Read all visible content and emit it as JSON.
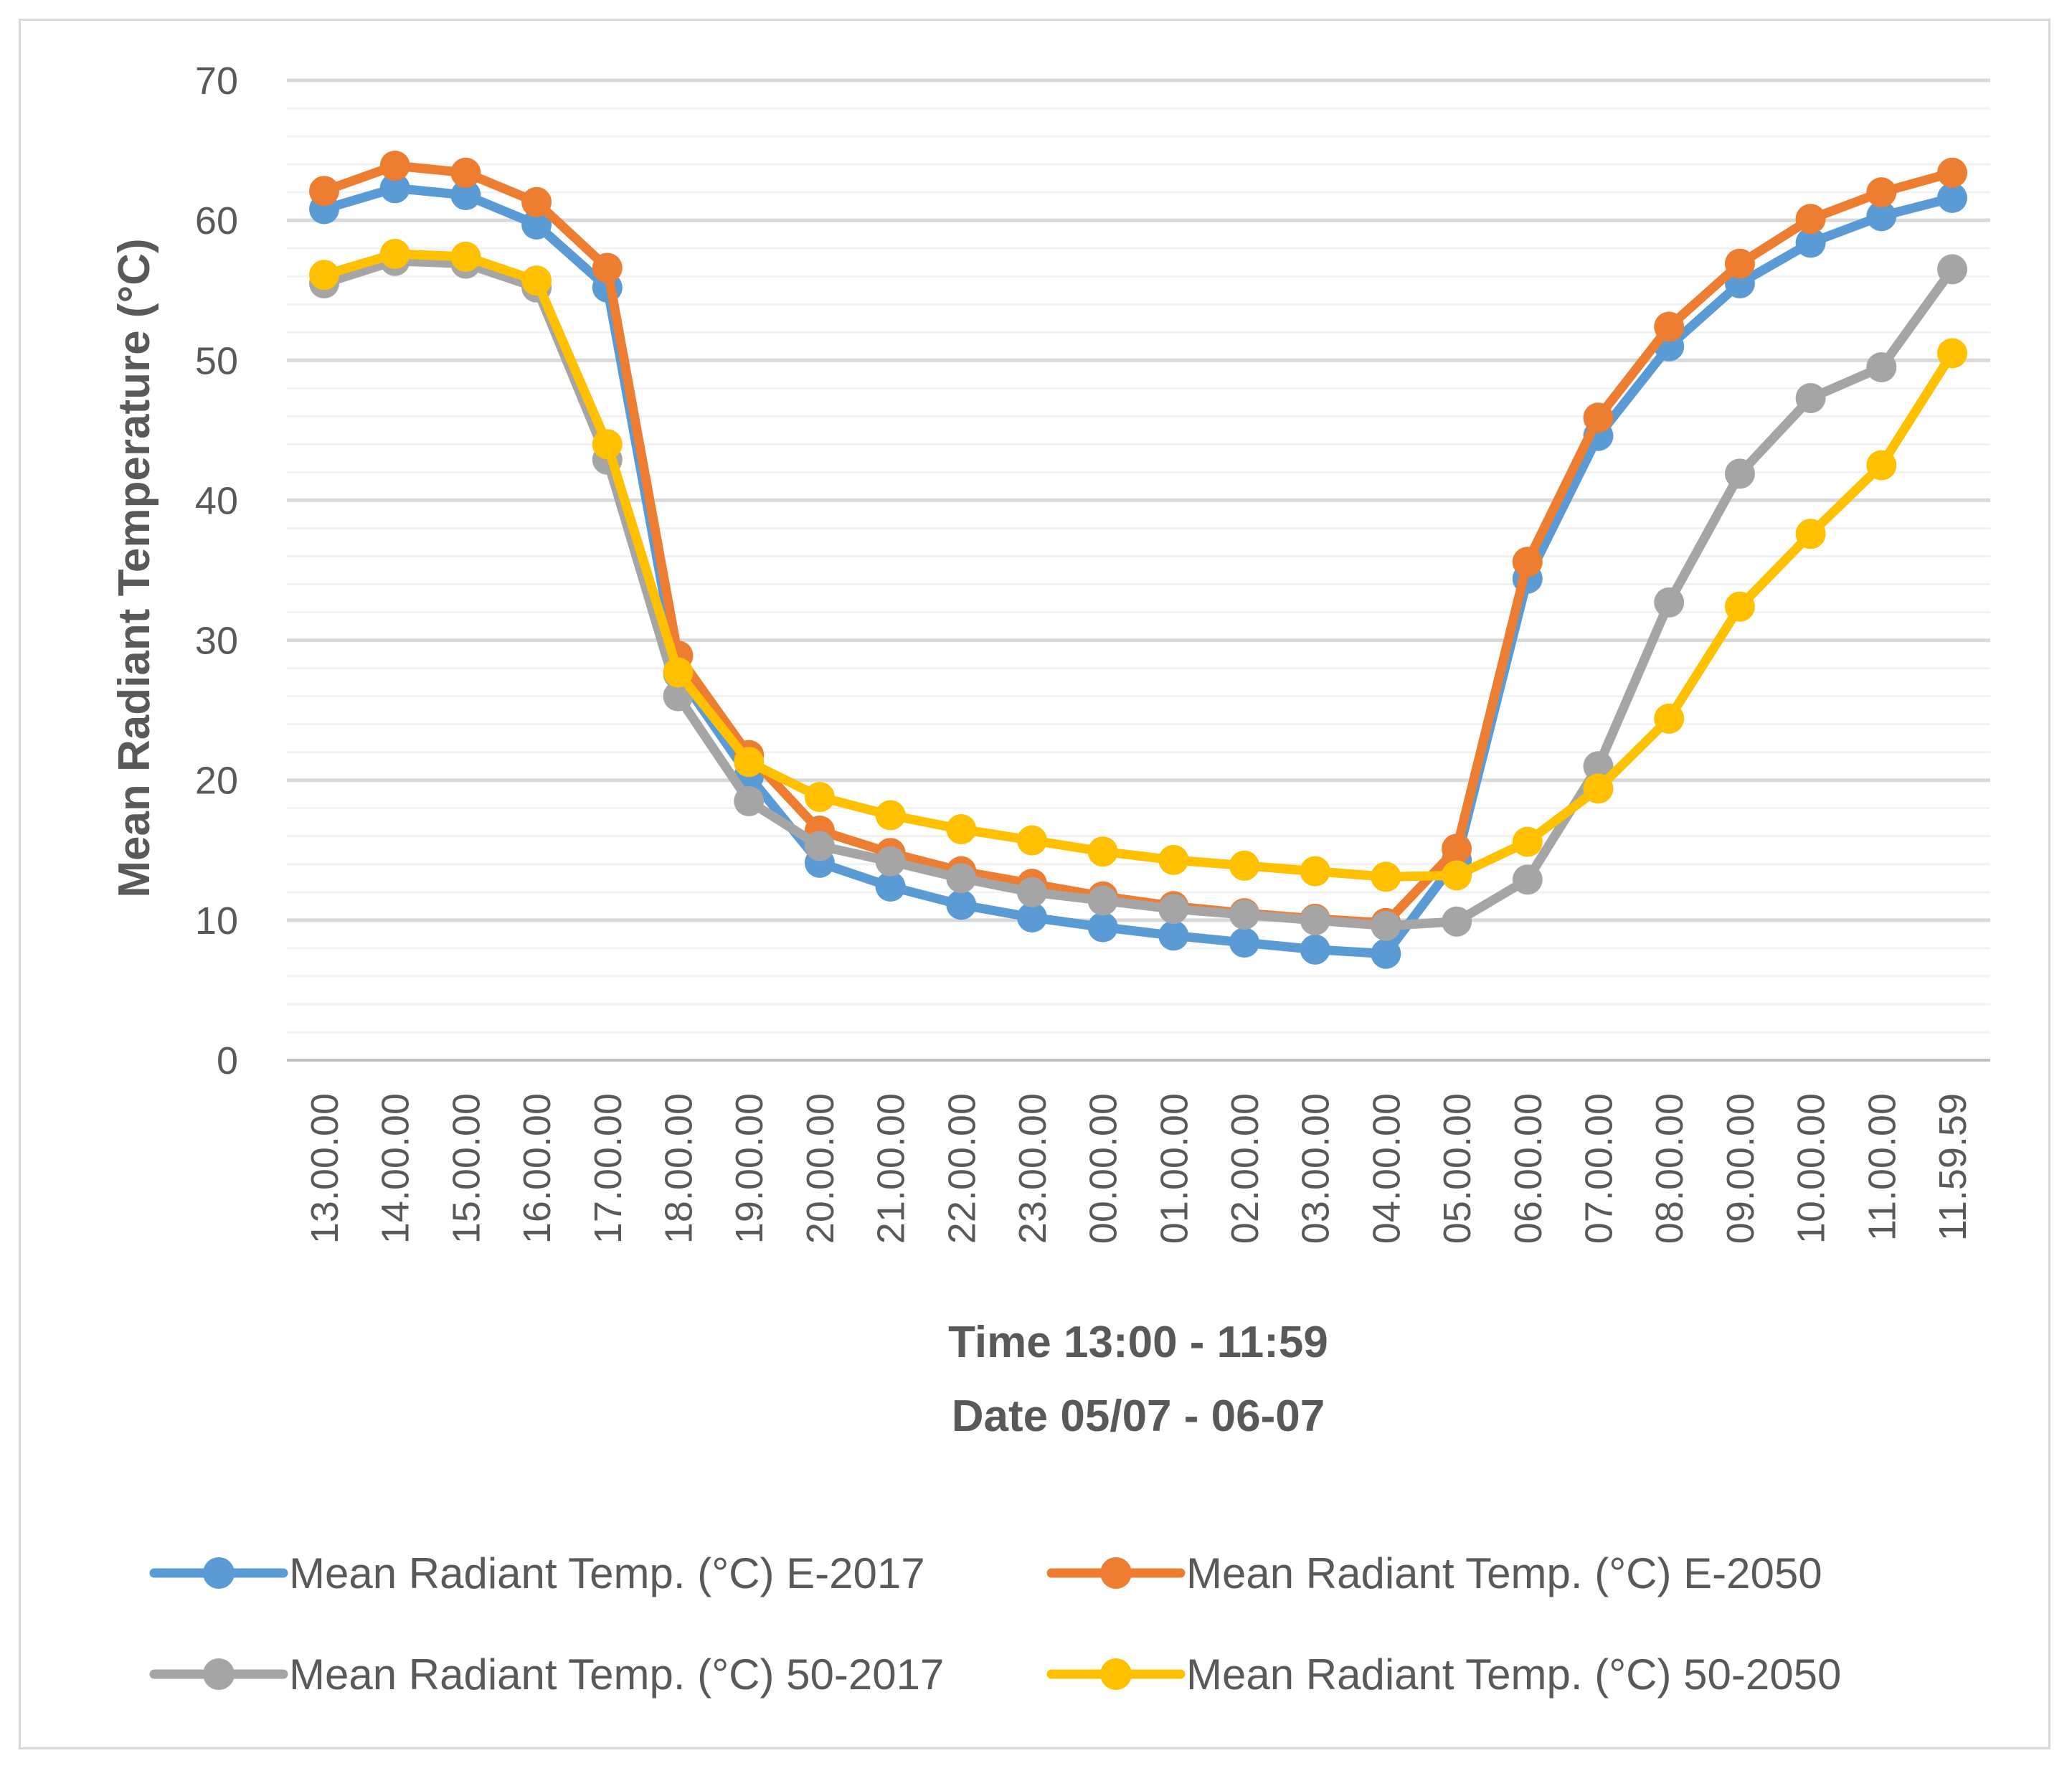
{
  "chart_data": {
    "type": "line",
    "title": "",
    "xlabel": "Time 13:00 - 11:59",
    "xlabel2": "Date 05/07 - 06-07",
    "ylabel": "Mean Radiant Temperature  (°C)",
    "ylim": [
      0,
      70
    ],
    "yticks": [
      "0",
      "10",
      "20",
      "30",
      "40",
      "50",
      "60",
      "70"
    ],
    "grid": true,
    "legend_position": "bottom",
    "categories": [
      "13.00.00",
      "14.00.00",
      "15.00.00",
      "16.00.00",
      "17.00.00",
      "18.00.00",
      "19.00.00",
      "20.00.00",
      "21.00.00",
      "22.00.00",
      "23.00.00",
      "00.00.00",
      "01.00.00",
      "02.00.00",
      "03.00.00",
      "04.00.00",
      "05.00.00",
      "06.00.00",
      "07.00.00",
      "08.00.00",
      "09.00.00",
      "10.00.00",
      "11.00.00",
      "11.59.59"
    ],
    "series": [
      {
        "name": "Mean Radiant Temp.  (°C) E-2017",
        "color": "#5b9bd5",
        "values": [
          60.8,
          62.3,
          61.8,
          59.7,
          55.2,
          27.6,
          20.3,
          14.1,
          12.4,
          11.1,
          10.2,
          9.5,
          8.9,
          8.4,
          7.9,
          7.6,
          14.3,
          34.4,
          44.6,
          51.0,
          55.5,
          58.4,
          60.3,
          61.6
        ]
      },
      {
        "name": "Mean Radiant Temp.  (°C) E-2050",
        "color": "#ed7d31",
        "values": [
          62.1,
          63.9,
          63.4,
          61.3,
          56.6,
          28.9,
          21.8,
          16.4,
          14.8,
          13.5,
          12.6,
          11.7,
          11.0,
          10.5,
          10.1,
          9.8,
          15.1,
          35.6,
          45.9,
          52.4,
          56.9,
          60.1,
          62.0,
          63.4
        ]
      },
      {
        "name": "Mean Radiant Temp.  (°C) 50-2017",
        "color": "#a5a5a5",
        "values": [
          55.5,
          57.1,
          56.9,
          55.2,
          42.9,
          26.0,
          18.5,
          15.3,
          14.2,
          13.0,
          12.0,
          11.4,
          10.8,
          10.4,
          10.0,
          9.6,
          9.9,
          12.9,
          21.0,
          32.7,
          41.9,
          47.3,
          49.5,
          56.5
        ]
      },
      {
        "name": "Mean Radiant Temp.  (°C) 50-2050",
        "color": "#ffc000",
        "values": [
          56.1,
          57.6,
          57.4,
          55.7,
          44.0,
          27.7,
          21.3,
          18.8,
          17.5,
          16.5,
          15.7,
          14.9,
          14.3,
          13.9,
          13.5,
          13.1,
          13.2,
          15.6,
          19.4,
          24.4,
          32.4,
          37.6,
          42.5,
          50.5
        ]
      }
    ]
  }
}
